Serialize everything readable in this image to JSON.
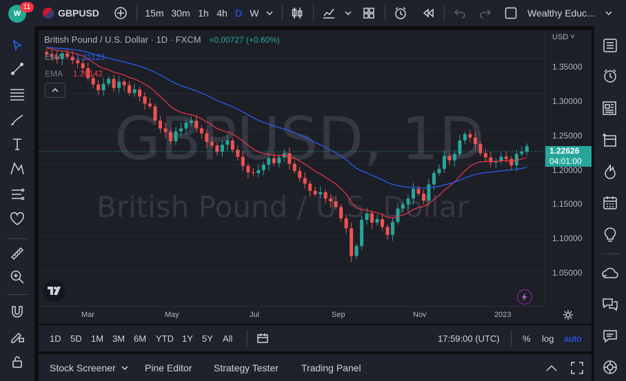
{
  "topbar": {
    "notification_count": "11",
    "symbol": "GBPUSD",
    "intervals": [
      "15m",
      "30m",
      "1h",
      "4h",
      "D",
      "W"
    ],
    "active_interval": "D",
    "account": "Wealthy Educ..."
  },
  "legend": {
    "title": "British Pound / U.S. Dollar · 1D · FXCM",
    "change": "+0.00727 (+0.60%)",
    "ema1_label": "EMA",
    "ema1_value": "1.21123",
    "ema2_label": "EMA",
    "ema2_value": "1.20142"
  },
  "watermark": {
    "symbol": "GBPUSD, 1D",
    "name": "British Pound / U.S. Dollar"
  },
  "price_axis": {
    "currency": "USD",
    "ticks": [
      "1.35000",
      "1.30000",
      "1.25000",
      "1.20000",
      "1.15000",
      "1.10000",
      "1.05000"
    ],
    "last_price": "1.22626",
    "countdown": "04:01:00"
  },
  "time_axis": {
    "ticks": [
      "Mar",
      "May",
      "Jul",
      "Sep",
      "Nov",
      "2023"
    ]
  },
  "bottombar": {
    "ranges": [
      "1D",
      "5D",
      "1M",
      "3M",
      "6M",
      "YTD",
      "1Y",
      "5Y",
      "All"
    ],
    "time": "17:59:00 (UTC)",
    "percent": "%",
    "log": "log",
    "auto": "auto"
  },
  "panels": [
    "Stock Screener",
    "Pine Editor",
    "Strategy Tester",
    "Trading Panel"
  ],
  "colors": {
    "up": "#26a69a",
    "down": "#ef5350",
    "ema_fast": "#2962ff",
    "ema_slow": "#f23645",
    "accent": "#2962ff",
    "last_price_bg": "#26a69a"
  },
  "chart_data": {
    "type": "candlestick",
    "title": "British Pound / U.S. Dollar · 1D · FXCM",
    "ylim": [
      1.02,
      1.37
    ],
    "x_ticks": [
      "Mar",
      "May",
      "Jul",
      "Sep",
      "Nov",
      "2023"
    ],
    "closes": [
      1.356,
      1.352,
      1.349,
      1.357,
      1.352,
      1.347,
      1.343,
      1.336,
      1.322,
      1.313,
      1.305,
      1.314,
      1.321,
      1.308,
      1.317,
      1.312,
      1.301,
      1.306,
      1.296,
      1.286,
      1.282,
      1.262,
      1.251,
      1.246,
      1.233,
      1.247,
      1.251,
      1.259,
      1.262,
      1.251,
      1.244,
      1.232,
      1.227,
      1.218,
      1.228,
      1.234,
      1.221,
      1.211,
      1.198,
      1.189,
      1.188,
      1.192,
      1.2,
      1.209,
      1.202,
      1.21,
      1.216,
      1.201,
      1.191,
      1.181,
      1.173,
      1.163,
      1.158,
      1.161,
      1.152,
      1.148,
      1.14,
      1.124,
      1.11,
      1.071,
      1.085,
      1.122,
      1.131,
      1.118,
      1.123,
      1.112,
      1.101,
      1.119,
      1.138,
      1.144,
      1.152,
      1.166,
      1.159,
      1.149,
      1.172,
      1.188,
      1.194,
      1.212,
      1.206,
      1.215,
      1.234,
      1.243,
      1.238,
      1.229,
      1.216,
      1.21,
      1.203,
      1.205,
      1.211,
      1.208,
      1.199,
      1.215,
      1.218,
      1.226
    ],
    "ema_fast_label": "EMA 1.21123",
    "ema_slow_label": "EMA 1.20142"
  }
}
